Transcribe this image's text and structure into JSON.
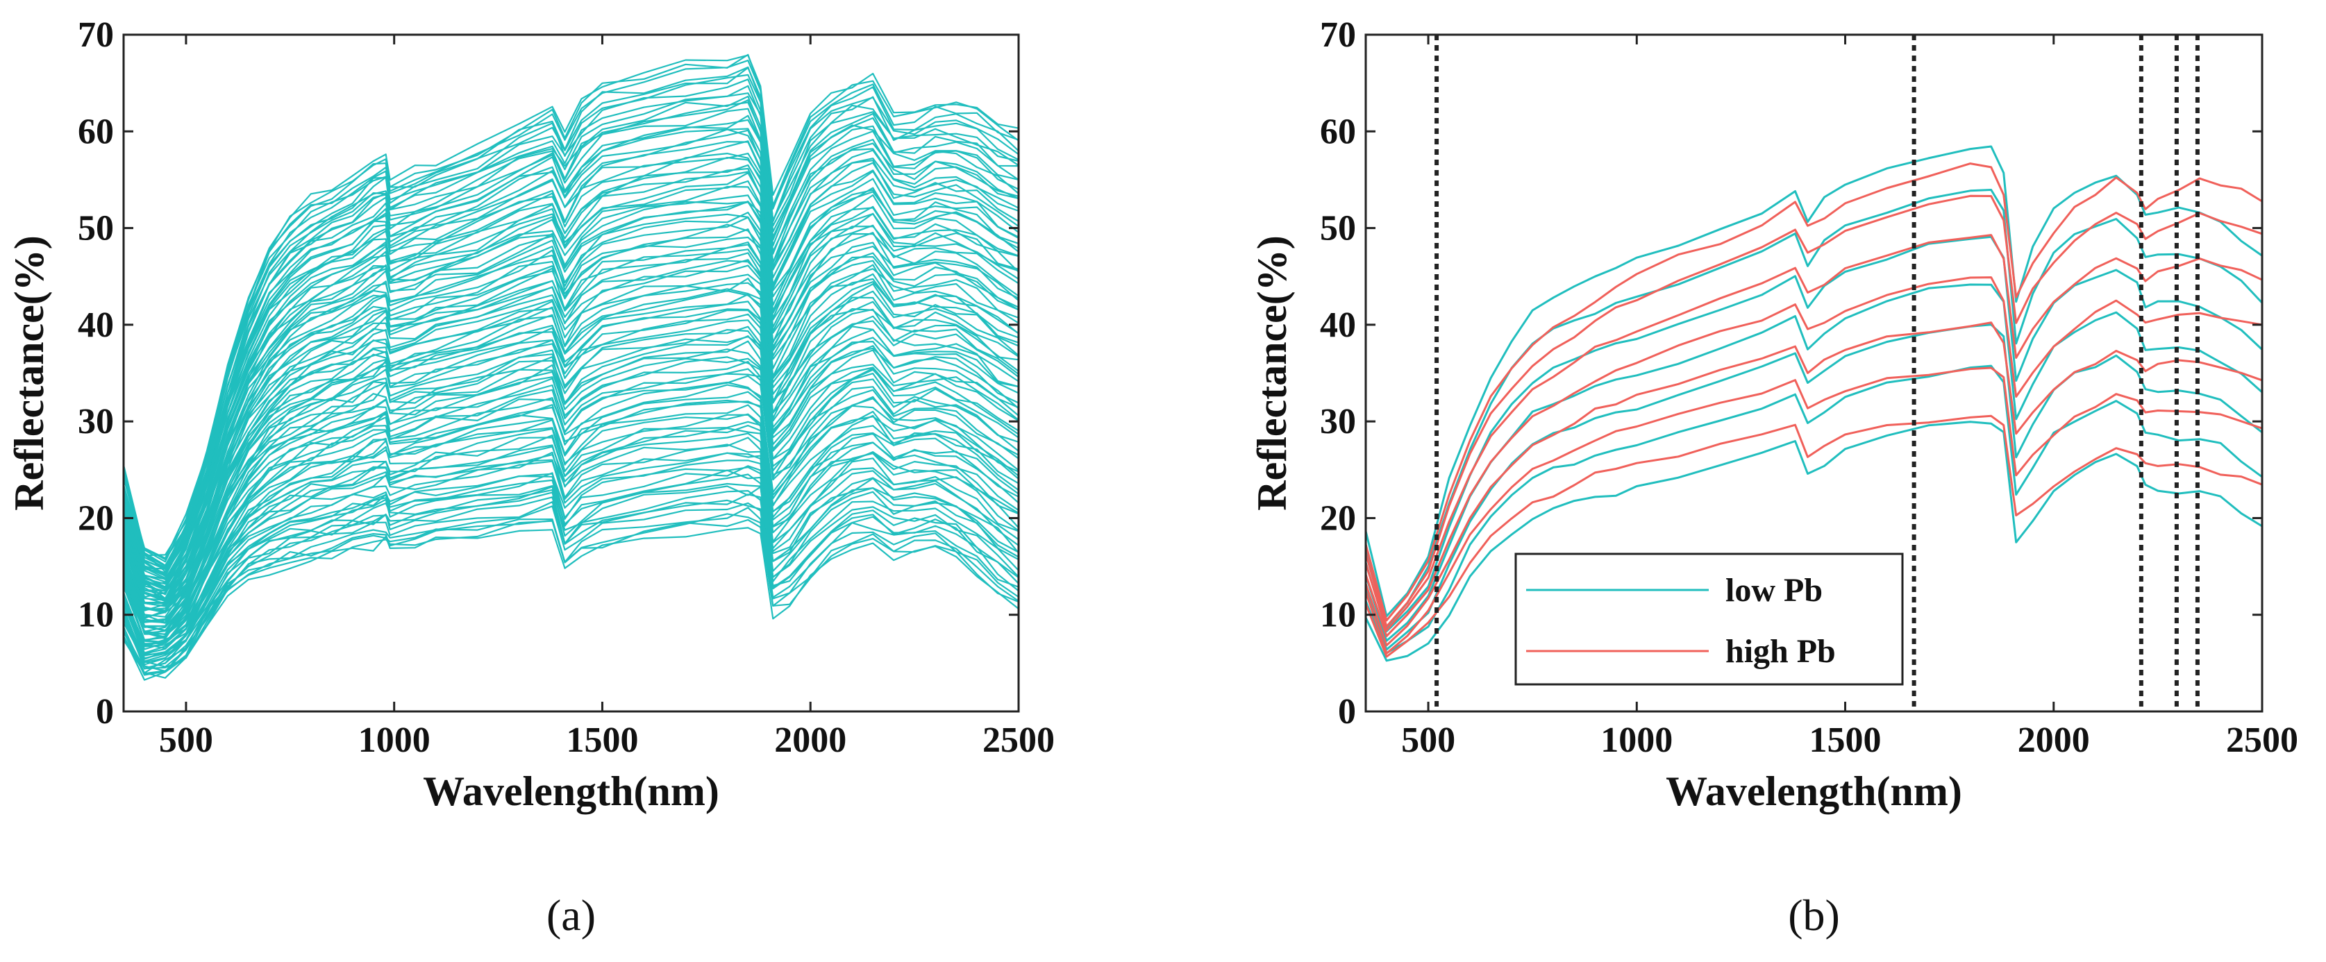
{
  "chart_data": [
    {
      "type": "line",
      "panel": "a",
      "caption_open": "(",
      "caption_letter": "a",
      "caption_close": ")",
      "title": "",
      "xlabel": "Wavelength(nm)",
      "ylabel": "Reflectance(%)",
      "xlim": [
        350,
        2500
      ],
      "ylim": [
        0,
        70
      ],
      "x_ticks": [
        500,
        1000,
        1500,
        2000,
        2500
      ],
      "y_ticks": [
        0,
        10,
        20,
        30,
        40,
        50,
        60,
        70
      ],
      "grid": false,
      "legend": null,
      "series_color": "#20BEBE",
      "x": [
        350,
        400,
        450,
        500,
        550,
        600,
        650,
        700,
        750,
        800,
        850,
        900,
        950,
        980,
        990,
        1050,
        1100,
        1200,
        1300,
        1380,
        1410,
        1450,
        1500,
        1600,
        1700,
        1800,
        1850,
        1880,
        1910,
        1950,
        2000,
        2050,
        2100,
        2150,
        2200,
        2250,
        2300,
        2350,
        2400,
        2450,
        2500
      ],
      "envelope_low": [
        8,
        3.5,
        4,
        5.5,
        9,
        12,
        13.5,
        14.5,
        15,
        15.5,
        16,
        16.5,
        17,
        17.5,
        16.5,
        17,
        17.5,
        18,
        18.5,
        19,
        14.5,
        16,
        17,
        18,
        18.5,
        19,
        19,
        19,
        10,
        11,
        13.5,
        15.5,
        17,
        17.5,
        16,
        16.5,
        16.5,
        15.5,
        14,
        12,
        10.5
      ],
      "envelope_high": [
        25,
        17,
        16,
        20,
        27,
        36,
        43,
        48,
        51,
        53,
        54,
        55,
        57,
        57.5,
        55,
        56,
        57,
        58.5,
        61,
        62.5,
        60,
        63,
        65,
        66,
        67,
        67.5,
        68,
        65,
        53,
        57,
        62,
        64,
        65,
        65.5,
        62,
        62,
        63,
        63,
        62.5,
        61,
        60
      ],
      "n_spectra": 100
    },
    {
      "type": "line",
      "panel": "b",
      "caption_open": "(",
      "caption_letter": "b",
      "caption_close": ")",
      "title": "",
      "xlabel": "Wavelength(nm)",
      "ylabel": "Reflectance(%)",
      "xlim": [
        350,
        2500
      ],
      "ylim": [
        0,
        70
      ],
      "x_ticks": [
        500,
        1000,
        1500,
        2000,
        2500
      ],
      "y_ticks": [
        0,
        10,
        20,
        30,
        40,
        50,
        60,
        70
      ],
      "grid": false,
      "legend": "bottom-left",
      "vertical_lines": [
        520,
        1665,
        2210,
        2295,
        2345
      ],
      "x": [
        350,
        400,
        450,
        500,
        550,
        600,
        650,
        700,
        750,
        800,
        850,
        900,
        950,
        1000,
        1100,
        1200,
        1300,
        1380,
        1410,
        1450,
        1500,
        1600,
        1700,
        1800,
        1850,
        1880,
        1910,
        1950,
        2000,
        2050,
        2100,
        2150,
        2200,
        2220,
        2250,
        2300,
        2350,
        2400,
        2450,
        2500
      ],
      "series": [
        {
          "name": "low Pb",
          "color": "#20BEBE",
          "reference_high": [
            19,
            10,
            13,
            17,
            25,
            31,
            36,
            40,
            43,
            44.5,
            45.5,
            46.5,
            47.5,
            48.5,
            50,
            51.5,
            53.5,
            55.5,
            52.5,
            55,
            56.5,
            58,
            59.5,
            60.5,
            60.5,
            58,
            44,
            50,
            54,
            56,
            57,
            57.5,
            55.5,
            53.5,
            54,
            54.5,
            53.5,
            52.5,
            51,
            49
          ],
          "reference_low": [
            10,
            5,
            6,
            7,
            10,
            14,
            16.5,
            18.5,
            20,
            21,
            21.5,
            22,
            22.5,
            23,
            24,
            25.5,
            26.5,
            28,
            24.5,
            25.5,
            27,
            28.5,
            29.5,
            30,
            30,
            29,
            17.5,
            20,
            23,
            24.5,
            25.5,
            26.5,
            25.5,
            23.5,
            23,
            22.5,
            22.5,
            22,
            20.5,
            19
          ],
          "offsets": [
            0.0,
            0.18,
            0.33,
            0.47,
            0.62,
            0.78,
            0.93
          ]
        },
        {
          "name": "high Pb",
          "color": "#F0605A",
          "reference_high": [
            17,
            9.5,
            12,
            15.5,
            22.5,
            28,
            32.5,
            35.5,
            38,
            39.5,
            41,
            42.5,
            44,
            45,
            47,
            48.5,
            50.5,
            52.5,
            50,
            51,
            52.5,
            54,
            55.5,
            56.5,
            56.5,
            53.5,
            43,
            46.5,
            49.5,
            52,
            53.5,
            55,
            53.5,
            52,
            53,
            54,
            55,
            54.5,
            54,
            53
          ],
          "reference_low": [
            11,
            5.5,
            7,
            9,
            12,
            15.5,
            18,
            20,
            21.5,
            22.5,
            23.5,
            24.5,
            25,
            25.5,
            26.5,
            27.5,
            28.5,
            29.5,
            26.5,
            27.5,
            28.5,
            29.5,
            30,
            30.5,
            30.5,
            29.5,
            20,
            21.5,
            23.5,
            25,
            26,
            27,
            26.5,
            25.5,
            25.5,
            25.5,
            25,
            24.5,
            24,
            23.5
          ],
          "offsets": [
            0.0,
            0.2,
            0.37,
            0.55,
            0.72,
            0.88,
            1.0
          ]
        }
      ]
    }
  ]
}
